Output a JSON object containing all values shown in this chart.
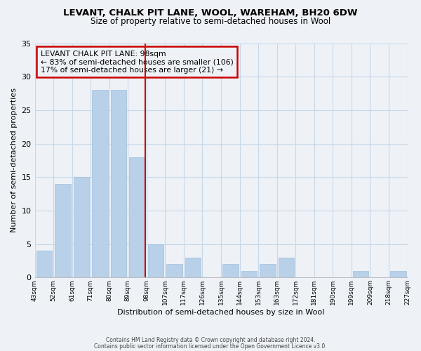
{
  "title1": "LEVANT, CHALK PIT LANE, WOOL, WAREHAM, BH20 6DW",
  "title2": "Size of property relative to semi-detached houses in Wool",
  "xlabel": "Distribution of semi-detached houses by size in Wool",
  "ylabel": "Number of semi-detached properties",
  "footer1": "Contains HM Land Registry data © Crown copyright and database right 2024.",
  "footer2": "Contains public sector information licensed under the Open Government Licence v3.0.",
  "annotation_line1": "LEVANT CHALK PIT LANE: 98sqm",
  "annotation_line2": "← 83% of semi-detached houses are smaller (106)",
  "annotation_line3": "17% of semi-detached houses are larger (21) →",
  "bin_labels": [
    "43sqm",
    "52sqm",
    "61sqm",
    "71sqm",
    "80sqm",
    "89sqm",
    "98sqm",
    "107sqm",
    "117sqm",
    "126sqm",
    "135sqm",
    "144sqm",
    "153sqm",
    "163sqm",
    "172sqm",
    "181sqm",
    "190sqm",
    "199sqm",
    "209sqm",
    "218sqm",
    "227sqm"
  ],
  "values": [
    4,
    14,
    15,
    28,
    28,
    18,
    5,
    2,
    3,
    0,
    2,
    1,
    2,
    3,
    0,
    0,
    0,
    1,
    0,
    1
  ],
  "highlight_after_bar": 5,
  "bar_color": "#b8d0e8",
  "bar_edge_color": "#a0c0e0",
  "highlight_line_color": "#cc0000",
  "box_edge_color": "#cc0000",
  "ylim": [
    0,
    35
  ],
  "yticks": [
    0,
    5,
    10,
    15,
    20,
    25,
    30,
    35
  ],
  "background_color": "#eef2f7",
  "grid_color": "#c8d8e8"
}
